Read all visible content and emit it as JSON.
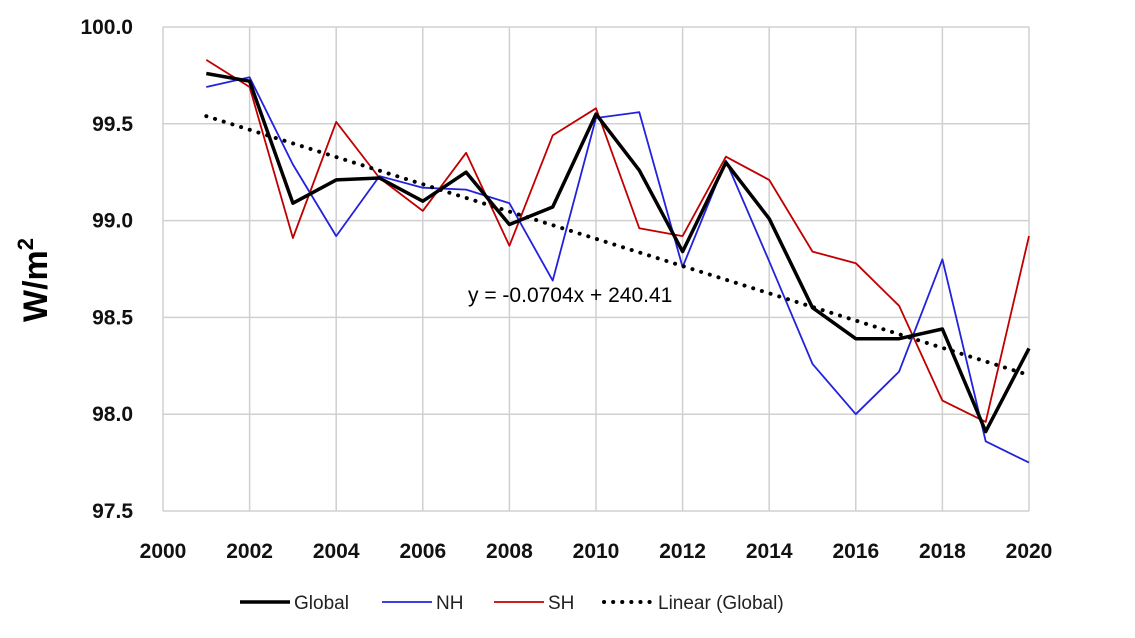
{
  "chart_data": {
    "type": "line",
    "ylabel_main": "W/m",
    "ylabel_sup": "2",
    "xlim": [
      2000,
      2020
    ],
    "ylim": [
      97.5,
      100.0
    ],
    "x_ticks": [
      "2000",
      "2002",
      "2004",
      "2006",
      "2008",
      "2010",
      "2012",
      "2014",
      "2016",
      "2018",
      "2020"
    ],
    "y_ticks": [
      "97.5",
      "98.0",
      "98.5",
      "99.0",
      "99.5",
      "100.0"
    ],
    "grid": true,
    "legend_position": "bottom",
    "x": [
      2001,
      2002,
      2003,
      2004,
      2005,
      2006,
      2007,
      2008,
      2009,
      2010,
      2011,
      2012,
      2013,
      2014,
      2015,
      2016,
      2017,
      2018,
      2019,
      2020
    ],
    "series": [
      {
        "name": "Global",
        "color": "#000000",
        "values": [
          99.76,
          99.72,
          99.09,
          99.21,
          99.22,
          99.1,
          99.25,
          98.98,
          99.07,
          99.55,
          99.26,
          98.84,
          99.3,
          99.01,
          98.55,
          98.39,
          98.39,
          98.44,
          97.91,
          98.34
        ]
      },
      {
        "name": "NH",
        "color": "#2222dd",
        "values": [
          99.69,
          99.74,
          99.29,
          98.92,
          99.23,
          99.17,
          99.16,
          99.09,
          98.69,
          99.53,
          99.56,
          98.76,
          99.31,
          98.79,
          98.26,
          98.0,
          98.22,
          98.8,
          97.86,
          97.75
        ]
      },
      {
        "name": "SH",
        "color": "#c00000",
        "values": [
          99.83,
          99.69,
          98.91,
          99.51,
          99.22,
          99.05,
          99.35,
          98.87,
          99.44,
          99.58,
          98.96,
          98.92,
          99.33,
          99.21,
          98.84,
          98.78,
          98.56,
          98.07,
          97.96,
          98.92
        ]
      }
    ],
    "trendline": {
      "name": "Linear (Global)",
      "slope": -0.0704,
      "intercept": 240.41,
      "from_x": 2001,
      "to_x": 2020,
      "equation_label": "y = -0.0704x + 240.41"
    }
  }
}
